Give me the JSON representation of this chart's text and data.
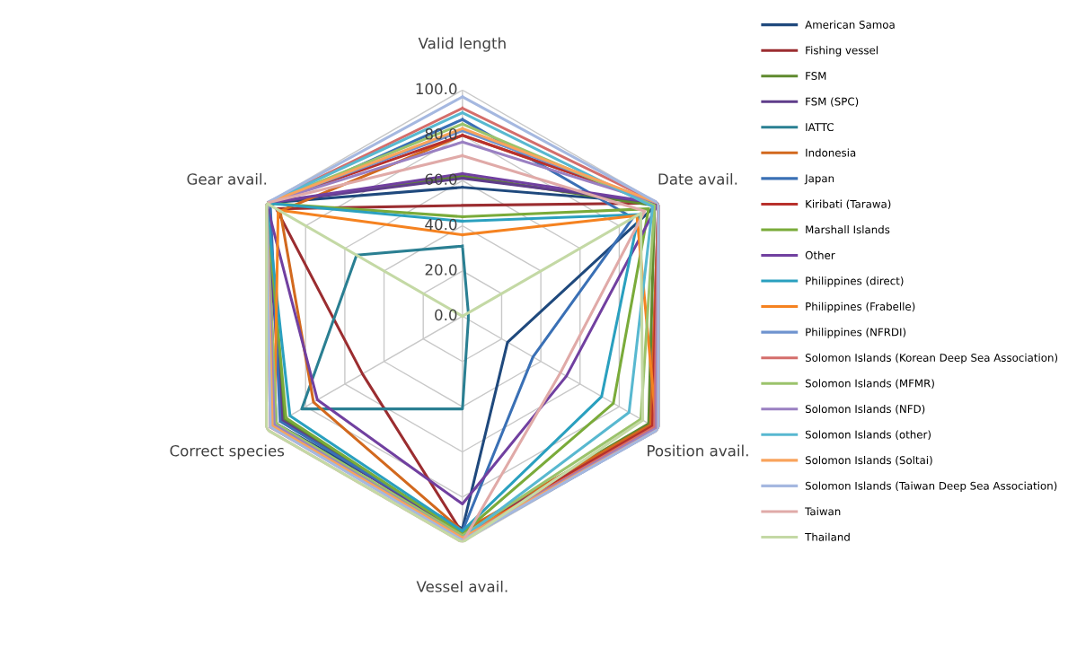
{
  "chart_data": {
    "type": "radar",
    "categories": [
      "Valid length",
      "Date avail.",
      "Position avail.",
      "Vessel avail.",
      "Correct species",
      "Gear avail."
    ],
    "ylim": [
      0,
      100
    ],
    "yticks": [
      {
        "value": 0,
        "label": "0.0"
      },
      {
        "value": 20,
        "label": "20.0"
      },
      {
        "value": 40,
        "label": "40.0"
      },
      {
        "value": 60,
        "label": "60.0"
      },
      {
        "value": 80,
        "label": "80.0"
      },
      {
        "value": 100,
        "label": "100.0"
      }
    ],
    "grid": true,
    "legend": "right",
    "marker": "none",
    "line_style": "solid",
    "series": [
      {
        "name": "American Samoa",
        "color": "#1f497d",
        "values": [
          57,
          100,
          23,
          94,
          95,
          100
        ]
      },
      {
        "name": "Fishing vessel",
        "color": "#9b2d30",
        "values": [
          49,
          100,
          97,
          96,
          51,
          95
        ]
      },
      {
        "name": "FSM",
        "color": "#5f8a2e",
        "values": [
          62,
          98,
          95,
          96,
          91,
          100
        ]
      },
      {
        "name": "FSM (SPC)",
        "color": "#5f3d8a",
        "values": [
          61,
          100,
          96,
          97,
          92,
          100
        ]
      },
      {
        "name": "IATTC",
        "color": "#2a7f92",
        "values": [
          31,
          3,
          3,
          41,
          82,
          54
        ]
      },
      {
        "name": "Indonesia",
        "color": "#d2691e",
        "values": [
          80,
          100,
          96,
          95,
          76,
          93
        ]
      },
      {
        "name": "Japan",
        "color": "#3a70b5",
        "values": [
          87,
          87,
          36,
          95,
          93,
          98
        ]
      },
      {
        "name": "Kiribati (Tarawa)",
        "color": "#b8302c",
        "values": [
          80,
          100,
          97,
          97,
          96,
          100
        ]
      },
      {
        "name": "Marshall Islands",
        "color": "#7aab3a",
        "values": [
          44,
          95,
          77,
          96,
          90,
          100
        ]
      },
      {
        "name": "Other",
        "color": "#7140a0",
        "values": [
          63,
          100,
          53,
          83,
          74,
          100
        ]
      },
      {
        "name": "Philippines (direct)",
        "color": "#2aa0bf",
        "values": [
          42,
          90,
          71,
          95,
          88,
          100
        ]
      },
      {
        "name": "Philippines (Frabelle)",
        "color": "#f58220",
        "values": [
          36,
          89,
          99,
          97,
          96,
          94
        ]
      },
      {
        "name": "Philippines (NFRDI)",
        "color": "#6f93cf",
        "values": [
          82,
          100,
          100,
          99,
          96,
          100
        ]
      },
      {
        "name": "Solomon Islands (Korean Deep Sea Association)",
        "color": "#d46e6b",
        "values": [
          92,
          100,
          98,
          98,
          98,
          100
        ]
      },
      {
        "name": "Solomon Islands (MFMR)",
        "color": "#9bc36b",
        "values": [
          85,
          98,
          91,
          97,
          95,
          100
        ]
      },
      {
        "name": "Solomon Islands (NFD)",
        "color": "#9a80c2",
        "values": [
          77,
          100,
          99,
          98,
          96,
          100
        ]
      },
      {
        "name": "Solomon Islands (other)",
        "color": "#58b8d0",
        "values": [
          90,
          97,
          85,
          98,
          97,
          100
        ]
      },
      {
        "name": "Solomon Islands (Soltai)",
        "color": "#f9a35c",
        "values": [
          83,
          100,
          100,
          98,
          97,
          100
        ]
      },
      {
        "name": "Solomon Islands (Taiwan Deep Sea Association)",
        "color": "#a5b8e0",
        "values": [
          97,
          100,
          100,
          99,
          98,
          100
        ]
      },
      {
        "name": "Taiwan",
        "color": "#e0aaa8",
        "values": [
          71,
          93,
          50,
          100,
          100,
          100
        ]
      },
      {
        "name": "Thailand",
        "color": "#c4d9a5",
        "values": [
          0,
          91,
          92,
          100,
          100,
          100
        ]
      }
    ]
  }
}
